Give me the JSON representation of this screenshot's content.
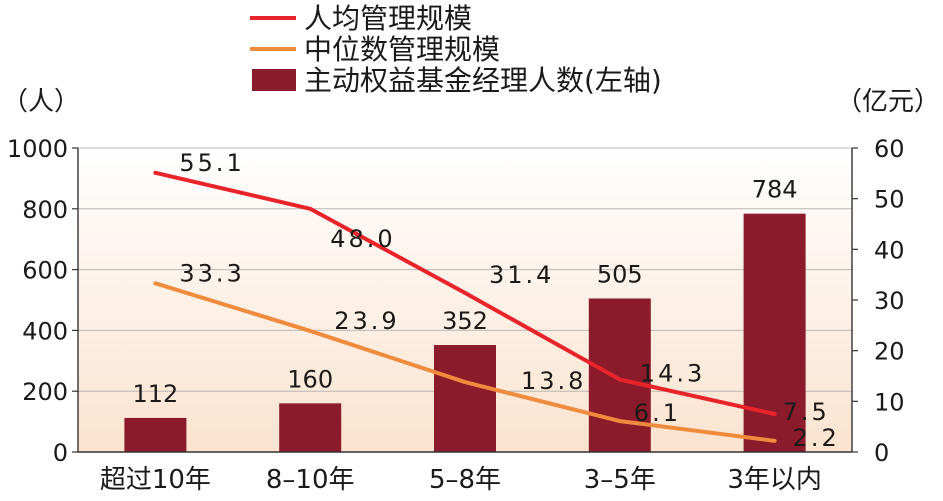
{
  "chart_data": {
    "type": "bar",
    "categories": [
      "超过10年",
      "8–10年",
      "5–8年",
      "3–5年",
      "3年以内"
    ],
    "series": [
      {
        "name": "主动权益基金经理人数(左轴)",
        "type": "bar",
        "axis": "left",
        "values": [
          112,
          160,
          352,
          505,
          784
        ],
        "labels": [
          "112",
          "160",
          "352",
          "505",
          "784"
        ],
        "color": "#8b1a2b"
      },
      {
        "name": "人均管理规模",
        "type": "line",
        "axis": "right",
        "values": [
          55.1,
          48.0,
          31.4,
          14.3,
          7.5
        ],
        "labels": [
          "55.1",
          "48.0",
          "31.4",
          "14.3",
          "7.5"
        ],
        "color": "#e8242a"
      },
      {
        "name": "中位数管理规模",
        "type": "line",
        "axis": "right",
        "values": [
          33.3,
          23.9,
          13.8,
          6.1,
          2.2
        ],
        "labels": [
          "33.3",
          "23.9",
          "13.8",
          "6.1",
          "2.2"
        ],
        "color": "#f08a3c"
      }
    ],
    "y_left": {
      "unit": "（人）",
      "lim": [
        0,
        1000
      ],
      "ticks": [
        "0",
        "200",
        "400",
        "600",
        "800",
        "1000"
      ]
    },
    "y_right": {
      "unit": "（亿元）",
      "lim": [
        0,
        60
      ],
      "ticks": [
        "0",
        "10",
        "20",
        "30",
        "40",
        "50",
        "60"
      ]
    },
    "legend_position": "top-center",
    "grid": true,
    "background_gradient": [
      "#ffffff",
      "#fbe3cf"
    ]
  }
}
